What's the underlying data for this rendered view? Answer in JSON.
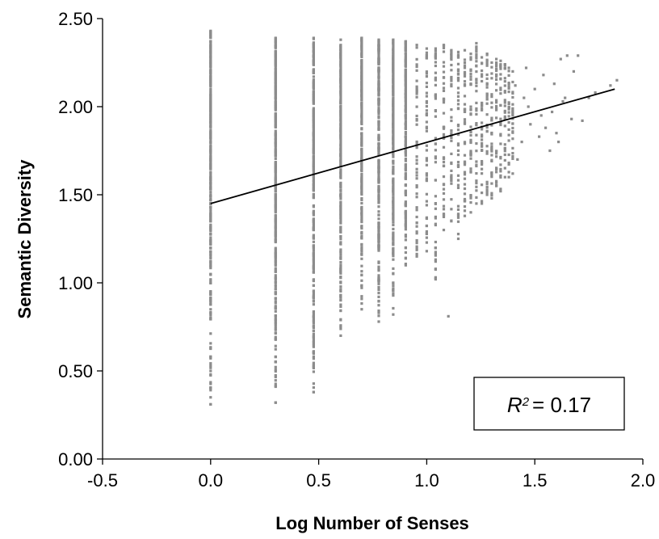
{
  "chart_data": {
    "type": "scatter",
    "xlabel": "Log Number of Senses",
    "ylabel": "Semantic Diversity",
    "xlim": [
      -0.5,
      2.0
    ],
    "ylim": [
      0.0,
      2.5
    ],
    "x_ticks": [
      "-0.5",
      "0.0",
      "0.5",
      "1.0",
      "1.5",
      "2.0"
    ],
    "y_ticks": [
      "0.00",
      "0.50",
      "1.00",
      "1.50",
      "2.00",
      "2.50"
    ],
    "point_color": "#8c8c8c",
    "line_color": "#000000",
    "trendline": {
      "x": [
        0.0,
        1.87
      ],
      "y": [
        1.45,
        2.1
      ]
    },
    "annotation": {
      "r2_prefix": "R",
      "r2_exp": "2",
      "r2_value": "= 0.17",
      "position": "bottom-right"
    },
    "columns": [
      {
        "x": 0.0,
        "y_min": 0.31,
        "y_max": 2.43,
        "outliers": [
          0.31,
          0.35,
          0.4,
          0.48,
          0.5
        ]
      },
      {
        "x": 0.301,
        "y_min": 0.32,
        "y_max": 2.39,
        "outliers": [
          0.32
        ]
      },
      {
        "x": 0.477,
        "y_min": 0.38,
        "y_max": 2.39,
        "outliers": [
          0.38,
          0.53
        ]
      },
      {
        "x": 0.602,
        "y_min": 0.7,
        "y_max": 2.38
      },
      {
        "x": 0.699,
        "y_min": 0.85,
        "y_max": 2.39
      },
      {
        "x": 0.778,
        "y_min": 0.78,
        "y_max": 2.38
      },
      {
        "x": 0.845,
        "y_min": 0.82,
        "y_max": 2.38
      },
      {
        "x": 0.903,
        "y_min": 1.1,
        "y_max": 2.37
      },
      {
        "x": 0.954,
        "y_min": 1.15,
        "y_max": 2.35
      },
      {
        "x": 1.0,
        "y_min": 1.18,
        "y_max": 2.33
      },
      {
        "x": 1.041,
        "y_min": 1.02,
        "y_max": 2.33
      },
      {
        "x": 1.079,
        "y_min": 1.3,
        "y_max": 2.35
      },
      {
        "x": 1.114,
        "y_min": 1.35,
        "y_max": 2.32
      },
      {
        "x": 1.146,
        "y_min": 1.25,
        "y_max": 2.31
      },
      {
        "x": 1.176,
        "y_min": 1.38,
        "y_max": 2.32
      },
      {
        "x": 1.204,
        "y_min": 1.4,
        "y_max": 2.3
      },
      {
        "x": 1.23,
        "y_min": 1.45,
        "y_max": 2.36
      },
      {
        "x": 1.255,
        "y_min": 1.45,
        "y_max": 2.28
      },
      {
        "x": 1.279,
        "y_min": 1.5,
        "y_max": 2.3
      },
      {
        "x": 1.301,
        "y_min": 1.48,
        "y_max": 2.25
      },
      {
        "x": 1.322,
        "y_min": 1.55,
        "y_max": 2.27
      },
      {
        "x": 1.342,
        "y_min": 1.52,
        "y_max": 2.26
      },
      {
        "x": 1.362,
        "y_min": 1.6,
        "y_max": 2.24
      },
      {
        "x": 1.38,
        "y_min": 1.6,
        "y_max": 2.22
      },
      {
        "x": 1.398,
        "y_min": 1.62,
        "y_max": 2.2
      }
    ],
    "extra_points": [
      [
        1.1,
        0.81
      ],
      [
        1.44,
        1.8
      ],
      [
        1.47,
        2.0
      ],
      [
        1.5,
        2.1
      ],
      [
        1.53,
        1.95
      ],
      [
        1.55,
        1.88
      ],
      [
        1.57,
        1.75
      ],
      [
        1.59,
        2.13
      ],
      [
        1.6,
        1.85
      ],
      [
        1.62,
        2.27
      ],
      [
        1.63,
        2.03
      ],
      [
        1.65,
        2.29
      ],
      [
        1.67,
        1.93
      ],
      [
        1.7,
        2.29
      ],
      [
        1.72,
        1.92
      ],
      [
        1.75,
        2.05
      ],
      [
        1.78,
        2.08
      ],
      [
        1.85,
        2.12
      ],
      [
        1.88,
        2.15
      ],
      [
        1.46,
        2.22
      ],
      [
        1.52,
        1.83
      ],
      [
        1.58,
        1.97
      ],
      [
        1.64,
        2.05
      ],
      [
        1.42,
        1.7
      ],
      [
        1.45,
        2.05
      ],
      [
        1.48,
        1.9
      ],
      [
        1.54,
        2.18
      ],
      [
        1.61,
        1.8
      ],
      [
        1.68,
        2.2
      ],
      [
        1.41,
        2.12
      ]
    ]
  }
}
